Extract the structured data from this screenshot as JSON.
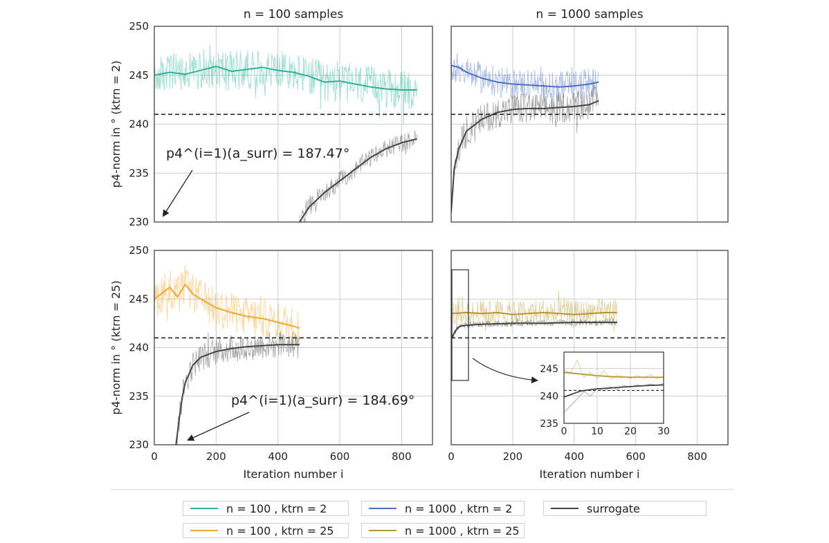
{
  "chart_data": [
    {
      "type": "line",
      "id": "p1",
      "title": "n = 100 samples",
      "ylabel": "p4-norm in ° (ktrn = 2)",
      "xlabel": "",
      "xlim": [
        0,
        900
      ],
      "ylim": [
        230,
        250
      ],
      "xticks": [],
      "yticks": [
        230,
        235,
        240,
        245,
        250
      ],
      "grid": true,
      "reference_line": 241,
      "annotation": "p4^(i=1)(a_surr) = 187.47°",
      "series": [
        {
          "name": "n = 100 , ktrn = 2",
          "color": "#2ab39a",
          "noise": 1.3,
          "x": [
            0,
            50,
            100,
            150,
            200,
            250,
            300,
            350,
            400,
            450,
            500,
            550,
            600,
            650,
            700,
            750,
            800,
            850
          ],
          "y": [
            245.0,
            245.3,
            245.1,
            245.5,
            245.9,
            245.4,
            245.6,
            245.8,
            245.5,
            245.3,
            244.9,
            244.3,
            244.4,
            244.1,
            243.8,
            243.6,
            243.5,
            243.5
          ]
        },
        {
          "name": "surrogate",
          "color": "#444444",
          "noise": 0.6,
          "x": [
            470,
            500,
            550,
            600,
            650,
            700,
            750,
            800,
            850
          ],
          "y": [
            230.0,
            231.5,
            233.0,
            234.2,
            235.4,
            236.6,
            237.5,
            238.1,
            238.5
          ]
        }
      ]
    },
    {
      "type": "line",
      "id": "p2",
      "title": "n = 1000 samples",
      "ylabel": "",
      "xlabel": "",
      "xlim": [
        0,
        900
      ],
      "ylim": [
        230,
        250
      ],
      "xticks": [],
      "yticks": [],
      "grid": true,
      "reference_line": 241,
      "series": [
        {
          "name": "n = 1000 , ktrn = 2",
          "color": "#4a6fc4",
          "noise": 1.0,
          "x": [
            0,
            25,
            50,
            100,
            150,
            200,
            250,
            300,
            350,
            400,
            450,
            480
          ],
          "y": [
            246.0,
            245.8,
            245.3,
            244.7,
            244.3,
            244.1,
            244.0,
            243.9,
            243.8,
            243.9,
            244.1,
            244.3
          ]
        },
        {
          "name": "surrogate",
          "color": "#444444",
          "noise": 1.0,
          "x": [
            0,
            10,
            25,
            50,
            100,
            150,
            200,
            250,
            300,
            350,
            400,
            450,
            480
          ],
          "y": [
            231.0,
            235.5,
            237.5,
            239.3,
            240.5,
            241.2,
            241.5,
            241.6,
            241.6,
            241.7,
            241.8,
            242.0,
            242.4
          ]
        }
      ]
    },
    {
      "type": "line",
      "id": "p3",
      "title": "",
      "ylabel": "p4-norm in ° (ktrn = 25)",
      "xlabel": "Iteration number i",
      "xlim": [
        0,
        900
      ],
      "ylim": [
        230,
        250
      ],
      "xticks": [
        0,
        200,
        400,
        600,
        800
      ],
      "yticks": [
        230,
        235,
        240,
        245,
        250
      ],
      "grid": true,
      "reference_line": 241,
      "annotation": "p4^(i=1)(a_surr) = 184.69°",
      "series": [
        {
          "name": "n = 100 , ktrn = 25",
          "color": "#f0a830",
          "noise": 1.3,
          "x": [
            0,
            25,
            50,
            75,
            100,
            125,
            150,
            200,
            250,
            300,
            350,
            400,
            450,
            470
          ],
          "y": [
            245.0,
            245.6,
            246.2,
            245.2,
            246.5,
            245.5,
            245.0,
            244.1,
            243.6,
            243.2,
            243.0,
            242.6,
            242.2,
            242.0
          ]
        },
        {
          "name": "surrogate",
          "color": "#444444",
          "noise": 0.9,
          "x": [
            70,
            80,
            90,
            100,
            125,
            150,
            200,
            250,
            300,
            350,
            400,
            450,
            470
          ],
          "y": [
            230.0,
            232.5,
            234.8,
            236.4,
            238.2,
            239.0,
            239.6,
            239.9,
            240.1,
            240.2,
            240.3,
            240.3,
            240.3
          ]
        }
      ]
    },
    {
      "type": "line",
      "id": "p4",
      "title": "",
      "ylabel": "",
      "xlabel": "Iteration number i",
      "xlim": [
        0,
        900
      ],
      "ylim": [
        230,
        250
      ],
      "xticks": [
        0,
        200,
        400,
        600,
        800
      ],
      "yticks": [],
      "grid": true,
      "reference_line": 241,
      "series": [
        {
          "name": "n = 1000 , ktrn = 25",
          "color": "#b8962e",
          "noise": 0.9,
          "x": [
            0,
            50,
            100,
            150,
            200,
            250,
            300,
            350,
            400,
            450,
            500,
            540
          ],
          "y": [
            243.5,
            243.6,
            243.5,
            243.6,
            243.4,
            243.5,
            243.6,
            243.5,
            243.4,
            243.5,
            243.6,
            243.6
          ]
        },
        {
          "name": "surrogate",
          "color": "#444444",
          "noise": 0.2,
          "x": [
            0,
            10,
            20,
            30,
            50,
            100,
            200,
            300,
            400,
            500,
            540
          ],
          "y": [
            240.8,
            241.5,
            242.0,
            242.2,
            242.3,
            242.4,
            242.5,
            242.5,
            242.6,
            242.6,
            242.6
          ]
        }
      ]
    },
    {
      "type": "line",
      "id": "inset",
      "title": "",
      "xlabel": "",
      "ylabel": "",
      "xlim": [
        0,
        30
      ],
      "ylim": [
        235,
        248
      ],
      "xticks": [
        0,
        10,
        20,
        30
      ],
      "yticks": [
        235,
        240,
        245
      ],
      "grid": true,
      "reference_line": 241,
      "series": [
        {
          "name": "n = 1000 , ktrn = 25",
          "color": "#b8962e",
          "noise": 0,
          "x": [
            0,
            5,
            10,
            15,
            20,
            25,
            30
          ],
          "y": [
            244.3,
            244.0,
            243.7,
            243.5,
            243.4,
            243.4,
            243.4
          ],
          "raw_x": [
            0,
            2,
            4,
            6,
            8,
            10,
            12,
            14,
            16,
            18,
            20,
            22,
            24,
            26,
            28,
            30
          ],
          "raw_y": [
            244.8,
            244.2,
            246.5,
            243.4,
            244.3,
            243.2,
            244.6,
            243.0,
            243.8,
            243.5,
            243.2,
            243.7,
            243.3,
            243.9,
            243.1,
            243.6
          ]
        },
        {
          "name": "surrogate",
          "color": "#444444",
          "noise": 0,
          "x": [
            0,
            5,
            10,
            15,
            20,
            25,
            30
          ],
          "y": [
            239.8,
            240.9,
            241.3,
            241.5,
            241.7,
            241.9,
            242.0
          ],
          "raw_x": [
            0,
            2,
            4,
            6,
            8,
            10,
            12,
            14,
            16,
            18,
            20,
            22,
            24,
            26,
            28,
            30
          ],
          "raw_y": [
            237.0,
            238.2,
            239.5,
            240.8,
            240.0,
            241.4,
            240.9,
            241.7,
            241.2,
            241.9,
            241.6,
            242.0,
            241.8,
            242.2,
            241.9,
            242.3
          ]
        }
      ]
    }
  ],
  "legend": {
    "placement": "bottom",
    "entries": [
      {
        "label": "n = 100 , ktrn = 2",
        "color": "#2ab39a"
      },
      {
        "label": "n = 1000 , ktrn = 2",
        "color": "#4a6fc4"
      },
      {
        "label": "surrogate",
        "color": "#444444"
      },
      {
        "label": "n = 100 , ktrn = 25",
        "color": "#f0a830"
      },
      {
        "label": "n = 1000 , ktrn = 25",
        "color": "#b8962e"
      }
    ]
  },
  "colors": {
    "reference_line": "#222222",
    "grid": "#cccccc",
    "axis": "#333333"
  }
}
